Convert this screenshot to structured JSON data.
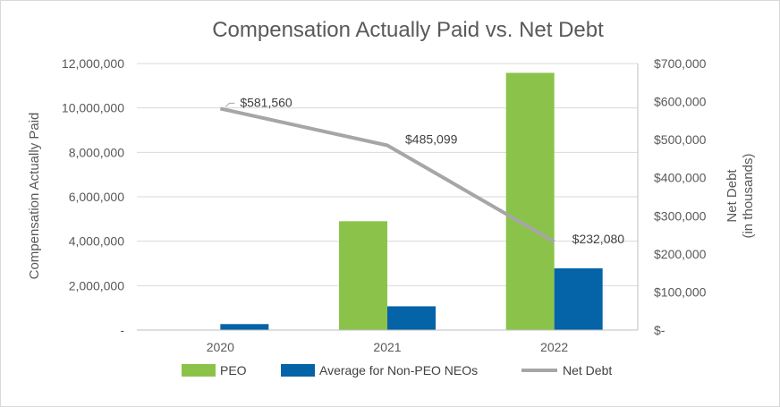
{
  "chart_data": {
    "type": "bar",
    "title": "Compensation Actually Paid vs. Net Debt",
    "categories": [
      "2020",
      "2021",
      "2022"
    ],
    "ylabel": "Compensation Actually Paid",
    "y2label_line1": "Net Debt",
    "y2label_line2": "(in thousands)",
    "ylim": [
      0,
      12000000
    ],
    "y2lim": [
      0,
      700000
    ],
    "y_ticks": [
      {
        "value": 0,
        "label": "-"
      },
      {
        "value": 2000000,
        "label": "2,000,000"
      },
      {
        "value": 4000000,
        "label": "4,000,000"
      },
      {
        "value": 6000000,
        "label": "6,000,000"
      },
      {
        "value": 8000000,
        "label": "8,000,000"
      },
      {
        "value": 10000000,
        "label": "10,000,000"
      },
      {
        "value": 12000000,
        "label": "12,000,000"
      }
    ],
    "y2_ticks": [
      {
        "value": 0,
        "label": "$-"
      },
      {
        "value": 100000,
        "label": "$100,000"
      },
      {
        "value": 200000,
        "label": "$200,000"
      },
      {
        "value": 300000,
        "label": "$300,000"
      },
      {
        "value": 400000,
        "label": "$400,000"
      },
      {
        "value": 500000,
        "label": "$500,000"
      },
      {
        "value": 600000,
        "label": "$600,000"
      },
      {
        "value": 700000,
        "label": "$700,000"
      }
    ],
    "series": [
      {
        "name": "PEO",
        "type": "bar",
        "axis": "left",
        "color": "#8BC34A",
        "values": [
          20000,
          4900000,
          11580000
        ]
      },
      {
        "name": "Average for Non-PEO NEOs",
        "type": "bar",
        "axis": "left",
        "color": "#0563A8",
        "values": [
          270000,
          1070000,
          2780000
        ]
      },
      {
        "name": "Net Debt",
        "type": "line",
        "axis": "right",
        "color": "#A6A6A6",
        "values": [
          581560,
          485099,
          232080
        ],
        "labels": [
          "$581,560",
          "$485,099",
          "$232,080"
        ]
      }
    ],
    "grid": true,
    "legend_position": "bottom"
  }
}
